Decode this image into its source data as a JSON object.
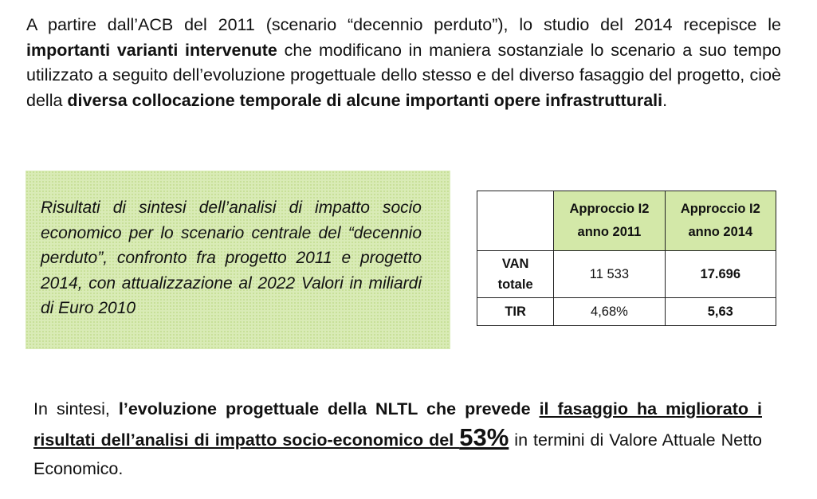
{
  "intro": {
    "part1": "A partire dall’ACB del 2011 (scenario “decennio perduto”), lo studio del 2014 recepisce le ",
    "bold1": "importanti varianti intervenute",
    "part2": " che modificano in maniera sostanziale lo scenario a suo tempo utilizzato a seguito dell’evoluzione progettuale dello stesso e del diverso fasaggio del progetto, cioè della ",
    "bold2": "diversa collocazione temporale di alcune importanti opere infrastrutturali",
    "part3": "."
  },
  "summary": {
    "text": "Risultati di sintesi dell’analisi di impatto socio economico per lo scenario centrale del “decennio perduto”, confronto fra progetto 2011 e progetto 2014, con attualizzazione al 2022 Valori in miliardi di Euro 2010"
  },
  "table": {
    "headers": [
      {
        "line1": "Approccio I2",
        "line2": "anno 2011"
      },
      {
        "line1": "Approccio I2",
        "line2": "anno 2014"
      }
    ],
    "rows": [
      {
        "label_line1": "VAN",
        "label_line2": "totale",
        "v2011": "11 533",
        "v2014": "17.696"
      },
      {
        "label_line1": "TIR",
        "label_line2": "",
        "v2011": "4,68%",
        "v2014": "5,63"
      }
    ],
    "header_color": "#d3e8a8"
  },
  "conclusion": {
    "part1": "In sintesi, ",
    "bold1": "l’evoluzione progettuale della NLTL che prevede ",
    "underlined": "il fasaggio ha migliorato i risultati dell’analisi di impatto socio-economico del ",
    "percent": "53%",
    "part2": " in termini di Valore Attuale Netto Economico."
  },
  "colors": {
    "box_background": "#d9ebb6"
  }
}
